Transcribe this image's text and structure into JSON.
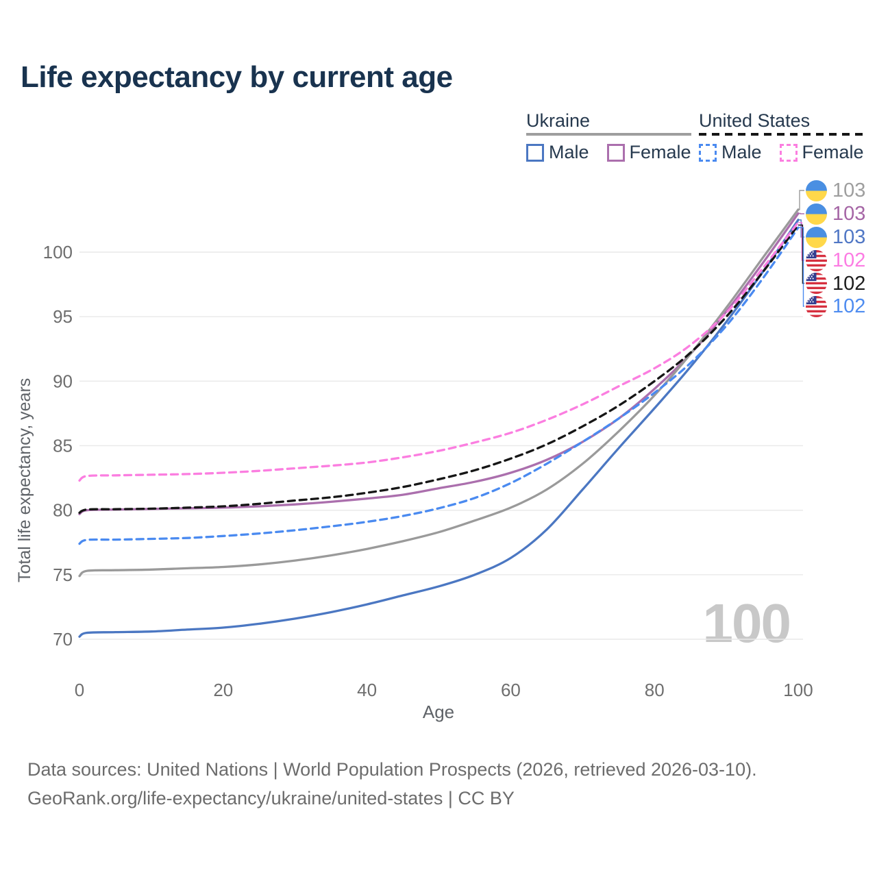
{
  "title": "Life expectancy by current age",
  "legend": {
    "groups": [
      {
        "label": "Ukraine",
        "line_style": "solid",
        "line_color": "#9e9e9e",
        "items": [
          {
            "label": "Male",
            "color": "#4b77c2",
            "style": "solid"
          },
          {
            "label": "Female",
            "color": "#ab6fad",
            "style": "solid"
          }
        ]
      },
      {
        "label": "United States",
        "line_style": "dashed",
        "line_color": "#151515",
        "items": [
          {
            "label": "Male",
            "color": "#4a8af0",
            "style": "dashed"
          },
          {
            "label": "Female",
            "color": "#fb7ee0",
            "style": "dashed"
          }
        ]
      }
    ]
  },
  "watermark": "100",
  "chart_data": {
    "type": "line",
    "title": "Life expectancy by current age",
    "xlabel": "Age",
    "ylabel": "Total life expectancy, years",
    "xlim": [
      0,
      100
    ],
    "ylim": [
      69,
      104
    ],
    "x_ticks": [
      0,
      20,
      40,
      60,
      80,
      100
    ],
    "y_ticks": [
      70,
      75,
      80,
      85,
      90,
      95,
      100
    ],
    "grid": "horizontal",
    "legend_position": "top-right",
    "x": [
      0,
      1,
      5,
      10,
      15,
      20,
      25,
      30,
      35,
      40,
      45,
      50,
      55,
      60,
      65,
      70,
      75,
      80,
      85,
      90,
      95,
      100
    ],
    "series": [
      {
        "key": "ukraine_male",
        "name": "Ukraine Male",
        "country": "Ukraine",
        "sex": "Male",
        "color": "#4b77c2",
        "dash": "solid",
        "end_label": "103",
        "label_color": "#5077c5",
        "flag": "ukraine",
        "values": [
          70.2,
          70.5,
          70.55,
          70.6,
          70.75,
          70.9,
          71.2,
          71.6,
          72.1,
          72.7,
          73.4,
          74.1,
          75.0,
          76.3,
          78.5,
          81.6,
          84.8,
          87.9,
          91.1,
          94.6,
          98.4,
          102.5
        ]
      },
      {
        "key": "ukraine_female",
        "name": "Ukraine Female",
        "country": "Ukraine",
        "sex": "Female",
        "color": "#ab6fad",
        "dash": "solid",
        "end_label": "103",
        "label_color": "#a565a5",
        "flag": "ukraine",
        "values": [
          79.7,
          80.0,
          80.05,
          80.1,
          80.15,
          80.2,
          80.3,
          80.45,
          80.65,
          80.9,
          81.2,
          81.7,
          82.2,
          82.9,
          83.9,
          85.3,
          87.1,
          89.4,
          92.1,
          95.4,
          99.1,
          103.0
        ]
      },
      {
        "key": "ukraine_total",
        "name": "Ukraine Both sexes",
        "country": "Ukraine",
        "sex": "Both",
        "color": "#9a9a9a",
        "dash": "solid",
        "end_label": "103",
        "label_color": "#9e9e9e",
        "flag": "ukraine",
        "values": [
          74.9,
          75.3,
          75.35,
          75.4,
          75.5,
          75.6,
          75.8,
          76.1,
          76.5,
          77.0,
          77.6,
          78.3,
          79.2,
          80.2,
          81.6,
          83.6,
          86.1,
          88.9,
          92.1,
          95.7,
          99.5,
          103.3
        ]
      },
      {
        "key": "us_male",
        "name": "United States Male",
        "country": "United States",
        "sex": "Male",
        "color": "#4a8af0",
        "dash": "dashed",
        "end_label": "102",
        "label_color": "#4e8cf0",
        "flag": "us",
        "values": [
          77.4,
          77.7,
          77.72,
          77.78,
          77.85,
          78.0,
          78.2,
          78.45,
          78.75,
          79.1,
          79.55,
          80.15,
          80.95,
          82.1,
          83.6,
          85.3,
          87.1,
          89.1,
          91.4,
          94.3,
          97.9,
          101.9
        ]
      },
      {
        "key": "us_total",
        "name": "United States Both sexes",
        "country": "United States",
        "sex": "Both",
        "color": "#161616",
        "dash": "dashed",
        "end_label": "102",
        "label_color": "#1d1d1d",
        "flag": "us",
        "values": [
          79.8,
          80.05,
          80.08,
          80.12,
          80.2,
          80.3,
          80.5,
          80.75,
          81.0,
          81.35,
          81.8,
          82.4,
          83.1,
          84.0,
          85.1,
          86.5,
          88.1,
          90.0,
          92.2,
          95.0,
          98.4,
          102.1
        ]
      },
      {
        "key": "us_female",
        "name": "United States Female",
        "country": "United States",
        "sex": "Female",
        "color": "#fb7ee0",
        "dash": "dashed",
        "end_label": "102",
        "label_color": "#fc7ce3",
        "flag": "us",
        "values": [
          82.3,
          82.65,
          82.7,
          82.75,
          82.8,
          82.9,
          83.05,
          83.25,
          83.45,
          83.7,
          84.1,
          84.6,
          85.25,
          86.0,
          87.0,
          88.2,
          89.6,
          91.0,
          92.8,
          95.3,
          98.7,
          102.3
        ]
      }
    ],
    "end_label_order": [
      "ukraine_total",
      "ukraine_female",
      "ukraine_male",
      "us_female",
      "us_total",
      "us_male"
    ]
  },
  "footer": {
    "line1": "Data sources: United Nations | World Population Prospects (2026, retrieved 2026-03-10).",
    "line2": "GeoRank.org/life-expectancy/ukraine/united-states | CC BY"
  }
}
